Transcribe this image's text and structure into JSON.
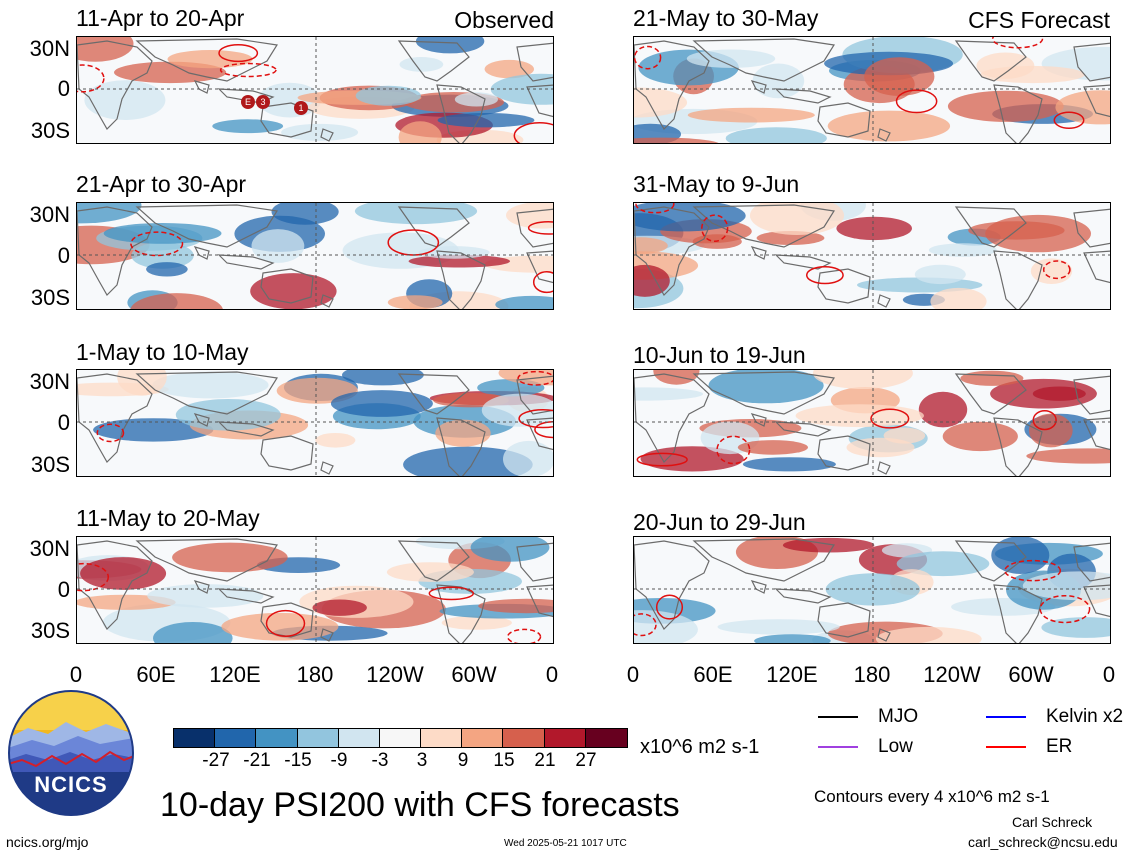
{
  "page": {
    "main_title": "10-day PSI200 with CFS forecasts",
    "footer_left": "ncics.org/mjo",
    "footer_center": "Wed 2025-05-21 1017 UTC",
    "author": "Carl Schreck",
    "email": "carl_schreck@ncsu.edu",
    "contours_note": "Contours every 4 x10^6 m2 s-1",
    "logo_text": "NCICS"
  },
  "columns": {
    "left_label": "Observed",
    "right_label": "CFS Forecast"
  },
  "panels": [
    {
      "title": "11-Apr to 20-Apr",
      "column": "left",
      "row": 0
    },
    {
      "title": "21-Apr to 30-Apr",
      "column": "left",
      "row": 1
    },
    {
      "title": "1-May to 10-May",
      "column": "left",
      "row": 2
    },
    {
      "title": "11-May to 20-May",
      "column": "left",
      "row": 3
    },
    {
      "title": "21-May to 30-May",
      "column": "right",
      "row": 0
    },
    {
      "title": "31-May to 9-Jun",
      "column": "right",
      "row": 1
    },
    {
      "title": "10-Jun to 19-Jun",
      "column": "right",
      "row": 2
    },
    {
      "title": "20-Jun to 29-Jun",
      "column": "right",
      "row": 3
    }
  ],
  "axes": {
    "lat_labels": [
      "30N",
      "0",
      "30S"
    ],
    "lon_labels": [
      "0",
      "60E",
      "120E",
      "180",
      "120W",
      "60W",
      "0"
    ]
  },
  "colorbar": {
    "unit": "x10^6 m2 s-1",
    "tick_labels": [
      "-27",
      "-21",
      "-15",
      "-9",
      "-3",
      "3",
      "9",
      "15",
      "21",
      "27"
    ],
    "colors": [
      "#08306b",
      "#2166ac",
      "#4393c3",
      "#92c5de",
      "#d1e5f0",
      "#f7f7f7",
      "#fddbc7",
      "#f4a582",
      "#d6604d",
      "#b2182b",
      "#67001f"
    ]
  },
  "legend": {
    "items": [
      {
        "label": "MJO",
        "color": "#000000"
      },
      {
        "label": "Kelvin x2",
        "color": "#0000ff"
      },
      {
        "label": "Low",
        "color": "#a040e0"
      },
      {
        "label": "ER",
        "color": "#ff0000"
      }
    ]
  },
  "storm_markers": [
    "E",
    "3",
    "1"
  ]
}
